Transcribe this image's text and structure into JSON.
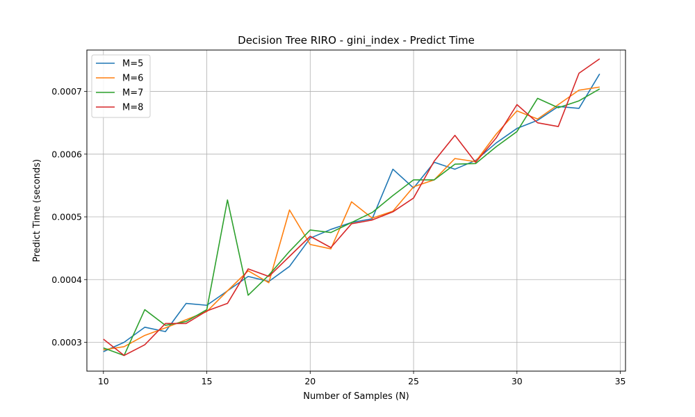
{
  "chart_data": {
    "type": "line",
    "title": "Decision Tree RIRO - gini_index - Predict Time",
    "xlabel": "Number of Samples (N)",
    "ylabel": "Predict Time (seconds)",
    "xlim": [
      9.2,
      35.25
    ],
    "ylim": [
      0.000254,
      0.000766
    ],
    "xticks": [
      10,
      15,
      20,
      25,
      30,
      35
    ],
    "xtick_labels": [
      "10",
      "15",
      "20",
      "25",
      "30",
      "35"
    ],
    "yticks": [
      0.0003,
      0.0004,
      0.0005,
      0.0006,
      0.0007
    ],
    "ytick_labels": [
      "0.0003",
      "0.0004",
      "0.0005",
      "0.0006",
      "0.0007"
    ],
    "grid": true,
    "legend_position": "top-left",
    "x": [
      10,
      11,
      12,
      13,
      14,
      15,
      16,
      17,
      18,
      19,
      20,
      21,
      22,
      23,
      24,
      25,
      26,
      27,
      28,
      29,
      30,
      31,
      32,
      33,
      34
    ],
    "series": [
      {
        "name": "M=5",
        "color": "#1f77b4",
        "values": [
          0.000285,
          0.0003,
          0.000324,
          0.000317,
          0.000362,
          0.000359,
          0.000382,
          0.000405,
          0.000397,
          0.000421,
          0.000466,
          0.00048,
          0.000491,
          0.000497,
          0.000576,
          0.000546,
          0.000587,
          0.000576,
          0.00059,
          0.000618,
          0.000641,
          0.000654,
          0.000676,
          0.000673,
          0.000728
        ]
      },
      {
        "name": "M=6",
        "color": "#ff7f0e",
        "values": [
          0.000288,
          0.000293,
          0.000311,
          0.000323,
          0.000336,
          0.000349,
          0.000382,
          0.000414,
          0.000395,
          0.000511,
          0.000456,
          0.000449,
          0.000524,
          0.000498,
          0.000509,
          0.000548,
          0.000559,
          0.000593,
          0.000588,
          0.000632,
          0.000669,
          0.000656,
          0.000679,
          0.000702,
          0.000707
        ]
      },
      {
        "name": "M=7",
        "color": "#2ca02c",
        "values": [
          0.000291,
          0.000279,
          0.000352,
          0.000327,
          0.000333,
          0.000352,
          0.000527,
          0.000375,
          0.000407,
          0.000445,
          0.000479,
          0.000475,
          0.000491,
          0.000507,
          0.000534,
          0.000559,
          0.000559,
          0.000584,
          0.000585,
          0.000612,
          0.000636,
          0.000689,
          0.000674,
          0.000685,
          0.000704
        ]
      },
      {
        "name": "M=8",
        "color": "#d62728",
        "values": [
          0.000305,
          0.000279,
          0.000296,
          0.00033,
          0.00033,
          0.00035,
          0.000362,
          0.000417,
          0.000405,
          0.000437,
          0.000469,
          0.000451,
          0.000489,
          0.000495,
          0.000508,
          0.00053,
          0.000589,
          0.00063,
          0.000587,
          0.000626,
          0.000679,
          0.00065,
          0.000644,
          0.000729,
          0.000752
        ]
      }
    ]
  }
}
